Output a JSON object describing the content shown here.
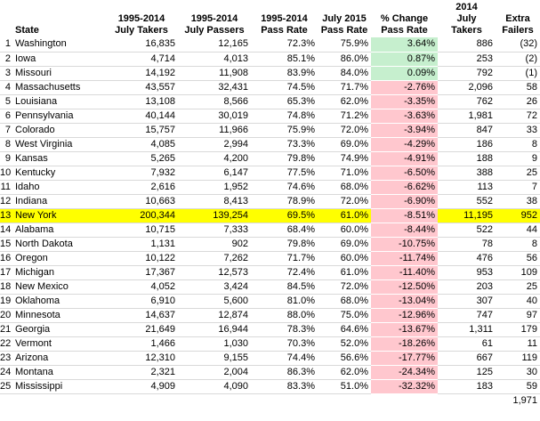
{
  "headers": {
    "state": "State",
    "takers_line1": "1995-2014",
    "takers_line2": "July Takers",
    "passers_line1": "1995-2014",
    "passers_line2": "July Passers",
    "rate_line1": "1995-2014",
    "rate_line2": "Pass Rate",
    "rate2015_line1": "July 2015",
    "rate2015_line2": "Pass Rate",
    "change_line1": "% Change",
    "change_line2": "Pass Rate",
    "t2014_line1": "2014",
    "t2014_line2": "July Takers",
    "extra_line1": "Extra",
    "extra_line2": "Failers"
  },
  "rows": [
    {
      "rank": "1",
      "state": "Washington",
      "takers": "16,835",
      "passers": "12,165",
      "rate": "72.3%",
      "rate2015": "75.9%",
      "change": "3.64%",
      "takers2014": "886",
      "extra": "(32)",
      "sign": "pos"
    },
    {
      "rank": "2",
      "state": "Iowa",
      "takers": "4,714",
      "passers": "4,013",
      "rate": "85.1%",
      "rate2015": "86.0%",
      "change": "0.87%",
      "takers2014": "253",
      "extra": "(2)",
      "sign": "pos"
    },
    {
      "rank": "3",
      "state": "Missouri",
      "takers": "14,192",
      "passers": "11,908",
      "rate": "83.9%",
      "rate2015": "84.0%",
      "change": "0.09%",
      "takers2014": "792",
      "extra": "(1)",
      "sign": "pos"
    },
    {
      "rank": "4",
      "state": "Massachusetts",
      "takers": "43,557",
      "passers": "32,431",
      "rate": "74.5%",
      "rate2015": "71.7%",
      "change": "-2.76%",
      "takers2014": "2,096",
      "extra": "58",
      "sign": "neg"
    },
    {
      "rank": "5",
      "state": "Louisiana",
      "takers": "13,108",
      "passers": "8,566",
      "rate": "65.3%",
      "rate2015": "62.0%",
      "change": "-3.35%",
      "takers2014": "762",
      "extra": "26",
      "sign": "neg"
    },
    {
      "rank": "6",
      "state": "Pennsylvania",
      "takers": "40,144",
      "passers": "30,019",
      "rate": "74.8%",
      "rate2015": "71.2%",
      "change": "-3.63%",
      "takers2014": "1,981",
      "extra": "72",
      "sign": "neg"
    },
    {
      "rank": "7",
      "state": "Colorado",
      "takers": "15,757",
      "passers": "11,966",
      "rate": "75.9%",
      "rate2015": "72.0%",
      "change": "-3.94%",
      "takers2014": "847",
      "extra": "33",
      "sign": "neg"
    },
    {
      "rank": "8",
      "state": "West Virginia",
      "takers": "4,085",
      "passers": "2,994",
      "rate": "73.3%",
      "rate2015": "69.0%",
      "change": "-4.29%",
      "takers2014": "186",
      "extra": "8",
      "sign": "neg"
    },
    {
      "rank": "9",
      "state": "Kansas",
      "takers": "5,265",
      "passers": "4,200",
      "rate": "79.8%",
      "rate2015": "74.9%",
      "change": "-4.91%",
      "takers2014": "188",
      "extra": "9",
      "sign": "neg"
    },
    {
      "rank": "10",
      "state": "Kentucky",
      "takers": "7,932",
      "passers": "6,147",
      "rate": "77.5%",
      "rate2015": "71.0%",
      "change": "-6.50%",
      "takers2014": "388",
      "extra": "25",
      "sign": "neg"
    },
    {
      "rank": "11",
      "state": "Idaho",
      "takers": "2,616",
      "passers": "1,952",
      "rate": "74.6%",
      "rate2015": "68.0%",
      "change": "-6.62%",
      "takers2014": "113",
      "extra": "7",
      "sign": "neg"
    },
    {
      "rank": "12",
      "state": "Indiana",
      "takers": "10,663",
      "passers": "8,413",
      "rate": "78.9%",
      "rate2015": "72.0%",
      "change": "-6.90%",
      "takers2014": "552",
      "extra": "38",
      "sign": "neg"
    },
    {
      "rank": "13",
      "state": "New York",
      "takers": "200,344",
      "passers": "139,254",
      "rate": "69.5%",
      "rate2015": "61.0%",
      "change": "-8.51%",
      "takers2014": "11,195",
      "extra": "952",
      "sign": "neg",
      "highlight": true
    },
    {
      "rank": "14",
      "state": "Alabama",
      "takers": "10,715",
      "passers": "7,333",
      "rate": "68.4%",
      "rate2015": "60.0%",
      "change": "-8.44%",
      "takers2014": "522",
      "extra": "44",
      "sign": "neg"
    },
    {
      "rank": "15",
      "state": "North Dakota",
      "takers": "1,131",
      "passers": "902",
      "rate": "79.8%",
      "rate2015": "69.0%",
      "change": "-10.75%",
      "takers2014": "78",
      "extra": "8",
      "sign": "neg"
    },
    {
      "rank": "16",
      "state": "Oregon",
      "takers": "10,122",
      "passers": "7,262",
      "rate": "71.7%",
      "rate2015": "60.0%",
      "change": "-11.74%",
      "takers2014": "476",
      "extra": "56",
      "sign": "neg"
    },
    {
      "rank": "17",
      "state": "Michigan",
      "takers": "17,367",
      "passers": "12,573",
      "rate": "72.4%",
      "rate2015": "61.0%",
      "change": "-11.40%",
      "takers2014": "953",
      "extra": "109",
      "sign": "neg"
    },
    {
      "rank": "18",
      "state": "New Mexico",
      "takers": "4,052",
      "passers": "3,424",
      "rate": "84.5%",
      "rate2015": "72.0%",
      "change": "-12.50%",
      "takers2014": "203",
      "extra": "25",
      "sign": "neg"
    },
    {
      "rank": "19",
      "state": "Oklahoma",
      "takers": "6,910",
      "passers": "5,600",
      "rate": "81.0%",
      "rate2015": "68.0%",
      "change": "-13.04%",
      "takers2014": "307",
      "extra": "40",
      "sign": "neg"
    },
    {
      "rank": "20",
      "state": "Minnesota",
      "takers": "14,637",
      "passers": "12,874",
      "rate": "88.0%",
      "rate2015": "75.0%",
      "change": "-12.96%",
      "takers2014": "747",
      "extra": "97",
      "sign": "neg"
    },
    {
      "rank": "21",
      "state": "Georgia",
      "takers": "21,649",
      "passers": "16,944",
      "rate": "78.3%",
      "rate2015": "64.6%",
      "change": "-13.67%",
      "takers2014": "1,311",
      "extra": "179",
      "sign": "neg"
    },
    {
      "rank": "22",
      "state": "Vermont",
      "takers": "1,466",
      "passers": "1,030",
      "rate": "70.3%",
      "rate2015": "52.0%",
      "change": "-18.26%",
      "takers2014": "61",
      "extra": "11",
      "sign": "neg"
    },
    {
      "rank": "23",
      "state": "Arizona",
      "takers": "12,310",
      "passers": "9,155",
      "rate": "74.4%",
      "rate2015": "56.6%",
      "change": "-17.77%",
      "takers2014": "667",
      "extra": "119",
      "sign": "neg"
    },
    {
      "rank": "24",
      "state": "Montana",
      "takers": "2,321",
      "passers": "2,004",
      "rate": "86.3%",
      "rate2015": "62.0%",
      "change": "-24.34%",
      "takers2014": "125",
      "extra": "30",
      "sign": "neg"
    },
    {
      "rank": "25",
      "state": "Mississippi",
      "takers": "4,909",
      "passers": "4,090",
      "rate": "83.3%",
      "rate2015": "51.0%",
      "change": "-32.32%",
      "takers2014": "183",
      "extra": "59",
      "sign": "neg"
    }
  ],
  "total_extra": "1,971",
  "colors": {
    "positive_fill": "#c6efce",
    "negative_fill": "#ffc7ce",
    "highlight_row": "#ffff00"
  }
}
